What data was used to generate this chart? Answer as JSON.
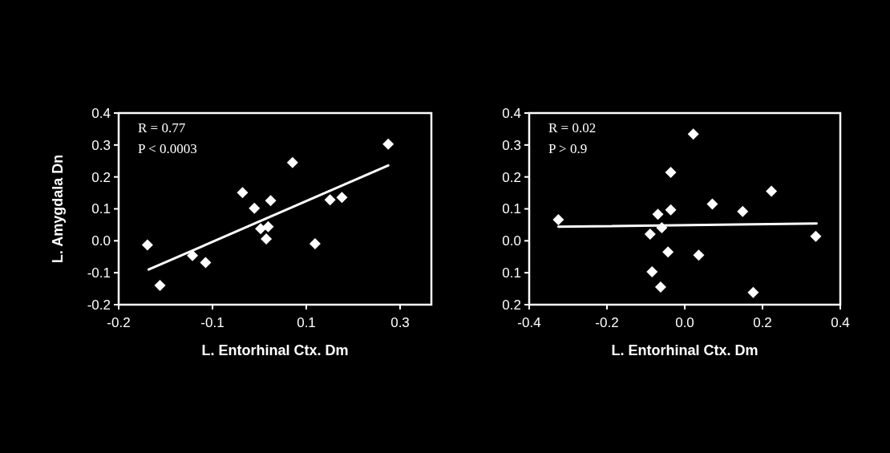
{
  "chart_data": [
    {
      "type": "scatter",
      "ylabel": "L. Amygdala Dn",
      "xlabel": "L. Entorhinal Ctx. Dm",
      "annotations": [
        "R = 0.77",
        "P < 0.0003"
      ],
      "xlim": [
        -0.2,
        0.3
      ],
      "xticks": [
        {
          "value": -0.2,
          "label": "-0.2"
        },
        {
          "value": -0.05,
          "label": "-0.1"
        },
        {
          "value": 0.1,
          "label": "0.1"
        },
        {
          "value": 0.25,
          "label": "0.3"
        }
      ],
      "ylim": [
        -0.2,
        0.4
      ],
      "yticks": [
        -0.2,
        {
          "value": -0.1,
          "label": "-0.1"
        },
        {
          "value": 0,
          "label": "0.0"
        },
        0.1,
        0.2,
        0.3,
        0.4
      ],
      "grid": false,
      "series": [
        {
          "marker": "diamond",
          "color": "#ffffff",
          "x": [
            -0.154,
            -0.134,
            -0.082,
            -0.061,
            -0.002,
            0.017,
            0.043,
            0.027,
            0.039,
            0.036,
            0.078,
            0.114,
            0.138,
            0.157,
            0.231
          ],
          "values": [
            -0.013,
            -0.14,
            -0.046,
            -0.068,
            0.151,
            0.102,
            0.126,
            0.038,
            0.044,
            0.006,
            0.245,
            -0.009,
            0.128,
            0.136,
            0.303
          ]
        },
        {
          "type": "line",
          "marker": "none",
          "color": "#ffffff",
          "x": [
            -0.152,
            0.231
          ],
          "values": [
            -0.09,
            0.236
          ]
        }
      ]
    },
    {
      "type": "scatter",
      "xlabel": "L. Entorhinal Ctx. Dm",
      "annotations": [
        "R = 0.02",
        "P > 0.9"
      ],
      "xlim": [
        -0.4,
        0.4
      ],
      "xticks": [
        -0.4,
        -0.2,
        {
          "value": 0,
          "label": "0.0"
        },
        0.2,
        0.4
      ],
      "ylim": [
        -0.2,
        0.4
      ],
      "yticks": [
        {
          "value": -0.2,
          "label": "0.2"
        },
        {
          "value": -0.1,
          "label": "0.1"
        },
        {
          "value": 0,
          "label": "0.0"
        },
        0.1,
        0.2,
        0.3,
        0.4
      ],
      "grid": false,
      "series": [
        {
          "marker": "diamond",
          "color": "#ffffff",
          "x": [
            -0.325,
            -0.069,
            -0.036,
            -0.059,
            -0.089,
            -0.036,
            0.022,
            0.071,
            0.149,
            0.223,
            0.337,
            -0.043,
            0.036,
            -0.084,
            -0.062,
            0.176
          ],
          "values": [
            0.066,
            0.083,
            0.097,
            0.041,
            0.021,
            0.214,
            0.334,
            0.115,
            0.092,
            0.155,
            0.014,
            -0.035,
            -0.045,
            -0.097,
            -0.145,
            -0.162
          ]
        },
        {
          "type": "line",
          "marker": "none",
          "color": "#ffffff",
          "x": [
            -0.325,
            0.339
          ],
          "values": [
            0.044,
            0.054
          ]
        }
      ]
    }
  ]
}
